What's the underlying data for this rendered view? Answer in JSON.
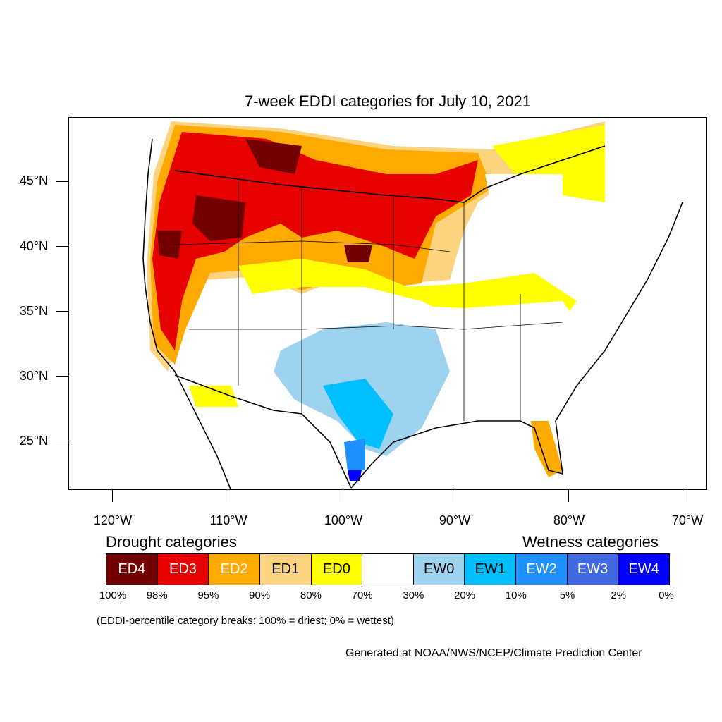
{
  "title": "7-week EDDI categories for July 10, 2021",
  "map": {
    "lat_labels": [
      "45°N",
      "40°N",
      "35°N",
      "30°N",
      "25°N"
    ],
    "lon_labels": [
      "120°W",
      "110°W",
      "100°W",
      "90°W",
      "80°W",
      "70°W"
    ],
    "colors": {
      "ED4": "#730000",
      "ED3": "#e60000",
      "ED2": "#ffaa00",
      "ED1": "#fcd37f",
      "ED0": "#ffff00",
      "neutral": "#ffffff",
      "EW0": "#9ed3f0",
      "EW1": "#00bfff",
      "EW2": "#1e90ff",
      "EW3": "#4169e1",
      "EW4": "#0000ff"
    }
  },
  "legend": {
    "drought_heading": "Drought categories",
    "wetness_heading": "Wetness categories",
    "boxes": [
      {
        "label": "ED4",
        "color": "#730000",
        "text_color": "#ffffff"
      },
      {
        "label": "ED3",
        "color": "#e60000",
        "text_color": "#ffffff"
      },
      {
        "label": "ED2",
        "color": "#ffaa00",
        "text_color": "#ffffff"
      },
      {
        "label": "ED1",
        "color": "#fcd37f",
        "text_color": "#000000"
      },
      {
        "label": "ED0",
        "color": "#ffff00",
        "text_color": "#000000"
      },
      {
        "label": "",
        "color": "#ffffff",
        "text_color": "#000000"
      },
      {
        "label": "EW0",
        "color": "#9ed3f0",
        "text_color": "#000000"
      },
      {
        "label": "EW1",
        "color": "#00bfff",
        "text_color": "#000000"
      },
      {
        "label": "EW2",
        "color": "#1e90ff",
        "text_color": "#ffffff"
      },
      {
        "label": "EW3",
        "color": "#4169e1",
        "text_color": "#ffffff"
      },
      {
        "label": "EW4",
        "color": "#0000ff",
        "text_color": "#ffffff"
      }
    ],
    "percentiles": [
      "100%",
      "98%",
      "95%",
      "90%",
      "80%",
      "70%",
      "30%",
      "20%",
      "10%",
      "5%",
      "2%",
      "0%"
    ]
  },
  "note": "(EDDI-percentile category breaks: 100% = driest; 0% = wettest)",
  "credit": "Generated at NOAA/NWS/NCEP/Climate Prediction Center"
}
